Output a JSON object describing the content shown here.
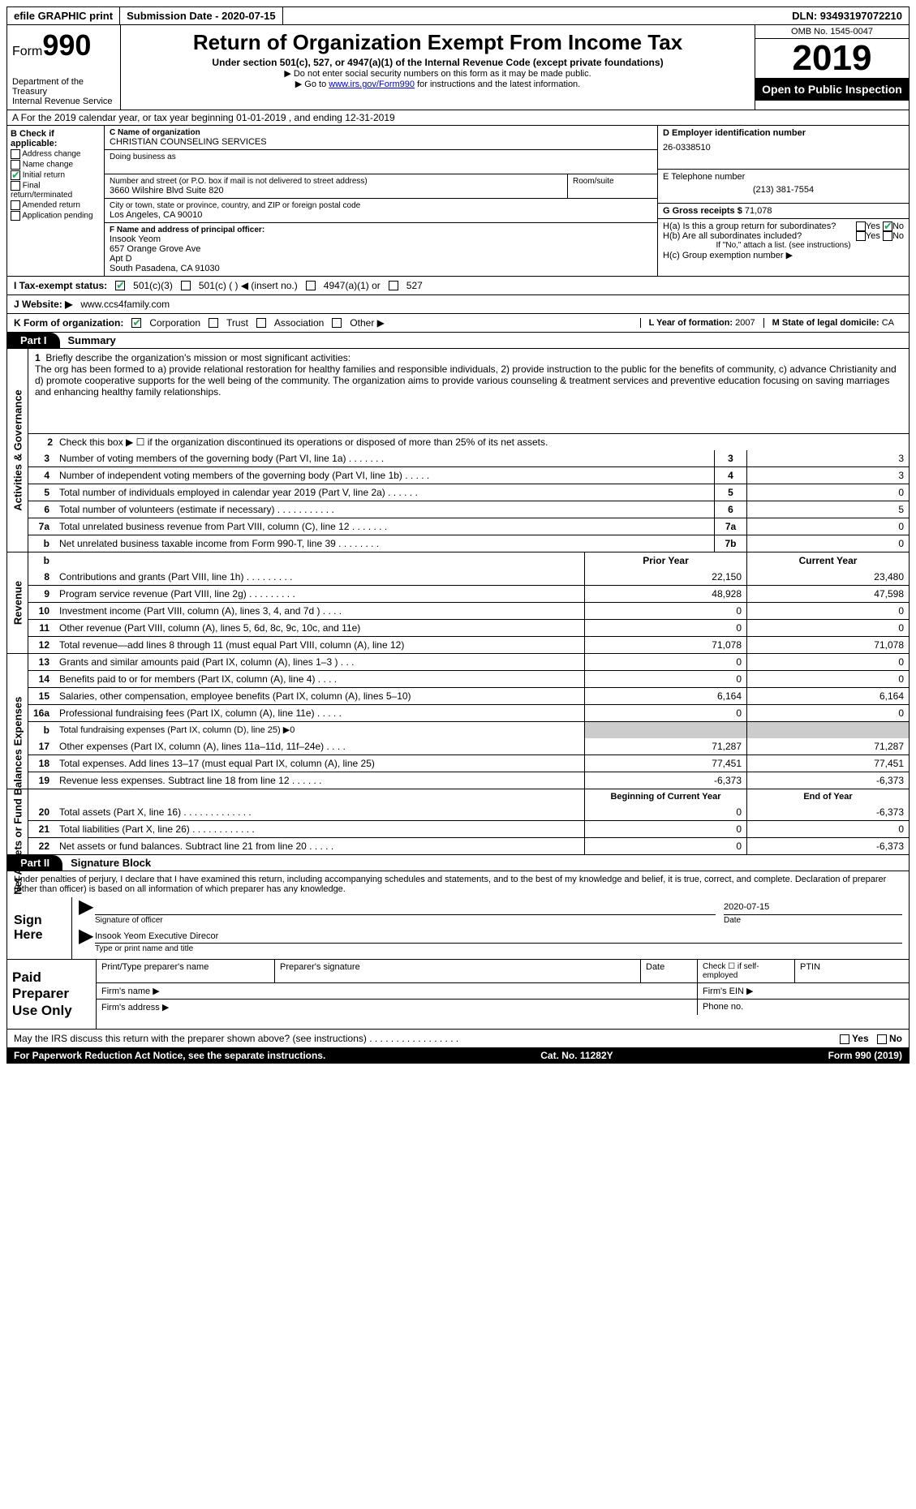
{
  "topbar": {
    "efile": "efile GRAPHIC print",
    "submission_label": "Submission Date - 2020-07-15",
    "dln_label": "DLN: 93493197072210"
  },
  "header": {
    "form_word": "Form",
    "form_num": "990",
    "dept": "Department of the Treasury\nInternal Revenue Service",
    "title": "Return of Organization Exempt From Income Tax",
    "subtitle": "Under section 501(c), 527, or 4947(a)(1) of the Internal Revenue Code (except private foundations)",
    "note1": "▶ Do not enter social security numbers on this form as it may be made public.",
    "note2_pre": "▶ Go to ",
    "note2_link": "www.irs.gov/Form990",
    "note2_post": " for instructions and the latest information.",
    "omb": "OMB No. 1545-0047",
    "year": "2019",
    "open": "Open to Public Inspection"
  },
  "row_a": "A   For the 2019 calendar year, or tax year beginning 01-01-2019     , and ending 12-31-2019",
  "box_b": {
    "title": "B Check if applicable:",
    "items": [
      "Address change",
      "Name change",
      "Initial return",
      "Final return/terminated",
      "Amended return",
      "Application pending"
    ],
    "checked_index": 2
  },
  "box_c": {
    "label_name": "C Name of organization",
    "name": "CHRISTIAN COUNSELING SERVICES",
    "dba_label": "Doing business as",
    "street_label": "Number and street (or P.O. box if mail is not delivered to street address)",
    "street": "3660 Wilshire Blvd Suite 820",
    "room_label": "Room/suite",
    "city_label": "City or town, state or province, country, and ZIP or foreign postal code",
    "city": "Los Angeles, CA   90010"
  },
  "box_d": {
    "label": "D Employer identification number",
    "value": "26-0338510"
  },
  "box_e": {
    "label": "E Telephone number",
    "value": "(213) 381-7554"
  },
  "box_g": {
    "label": "G Gross receipts $",
    "value": "71,078"
  },
  "box_f": {
    "label": "F  Name and address of principal officer:",
    "name": "Insook Yeom",
    "addr1": "657 Orange Grove Ave",
    "addr2": "Apt D",
    "addr3": "South Pasadena, CA   91030"
  },
  "box_h": {
    "ha": "H(a)  Is this a group return for subordinates?",
    "hb": "H(b)  Are all subordinates included?",
    "hb_note": "If \"No,\" attach a list. (see instructions)",
    "hc": "H(c)  Group exemption number ▶",
    "yes": "Yes",
    "no": "No"
  },
  "tax_status": {
    "label": "I    Tax-exempt status:",
    "opt1": "501(c)(3)",
    "opt2": "501(c) (  ) ◀ (insert no.)",
    "opt3": "4947(a)(1) or",
    "opt4": "527"
  },
  "website": {
    "label": "J   Website: ▶",
    "value": "www.ccs4family.com"
  },
  "line_k": {
    "label": "K Form of organization:",
    "opts": [
      "Corporation",
      "Trust",
      "Association",
      "Other ▶"
    ],
    "l_label": "L Year of formation: ",
    "l_val": "2007",
    "m_label": "M State of legal domicile: ",
    "m_val": "CA"
  },
  "part1": {
    "tab": "Part I",
    "title": "Summary",
    "sectA_label": "Activities & Governance",
    "line1_label": "Briefly describe the organization's mission or most significant activities:",
    "line1_text": "The org has been formed to a) provide relational restoration for healthy families and responsible individuals, 2) provide instruction to the public for the benefits of community, c) advance Christianity and d) promote cooperative supports for the well being of the community. The organization aims to provide various counseling & treatment services and preventive education focusing on saving marriages and enhancing healthy family relationships.",
    "line2": "Check this box ▶ ☐ if the organization discontinued its operations or disposed of more than 25% of its net assets.",
    "rows_gov": [
      {
        "n": "3",
        "t": "Number of voting members of the governing body (Part VI, line 1a)   .    .    .    .    .    .    .",
        "box": "3",
        "v": "3"
      },
      {
        "n": "4",
        "t": "Number of independent voting members of the governing body (Part VI, line 1b)    .    .    .    .    .",
        "box": "4",
        "v": "3"
      },
      {
        "n": "5",
        "t": "Total number of individuals employed in calendar year 2019 (Part V, line 2a)    .    .    .    .    .    .",
        "box": "5",
        "v": "0"
      },
      {
        "n": "6",
        "t": "Total number of volunteers (estimate if necessary)    .    .    .    .    .    .    .    .    .    .    .",
        "box": "6",
        "v": "5"
      },
      {
        "n": "7a",
        "t": "Total unrelated business revenue from Part VIII, column (C), line 12    .    .    .    .    .    .    .",
        "box": "7a",
        "v": "0"
      },
      {
        "n": "b",
        "t": "Net unrelated business taxable income from Form 990-T, line 39    .    .    .    .    .    .    .    .",
        "box": "7b",
        "v": "0"
      }
    ],
    "sectB_label": "Revenue",
    "header_prior": "Prior Year",
    "header_current": "Current Year",
    "rows_rev": [
      {
        "n": "8",
        "t": "Contributions and grants (Part VIII, line 1h)    .    .    .    .    .    .    .    .    .",
        "p": "22,150",
        "c": "23,480"
      },
      {
        "n": "9",
        "t": "Program service revenue (Part VIII, line 2g)    .    .    .    .    .    .    .    .    .",
        "p": "48,928",
        "c": "47,598"
      },
      {
        "n": "10",
        "t": "Investment income (Part VIII, column (A), lines 3, 4, and 7d )   .    .    .    .",
        "p": "0",
        "c": "0"
      },
      {
        "n": "11",
        "t": "Other revenue (Part VIII, column (A), lines 5, 6d, 8c, 9c, 10c, and 11e)",
        "p": "0",
        "c": "0"
      },
      {
        "n": "12",
        "t": "Total revenue—add lines 8 through 11 (must equal Part VIII, column (A), line 12)",
        "p": "71,078",
        "c": "71,078"
      }
    ],
    "sectC_label": "Expenses",
    "rows_exp": [
      {
        "n": "13",
        "t": "Grants and similar amounts paid (Part IX, column (A), lines 1–3 )   .    .    .",
        "p": "0",
        "c": "0"
      },
      {
        "n": "14",
        "t": "Benefits paid to or for members (Part IX, column (A), line 4)    .    .    .    .",
        "p": "0",
        "c": "0"
      },
      {
        "n": "15",
        "t": "Salaries, other compensation, employee benefits (Part IX, column (A), lines 5–10)",
        "p": "6,164",
        "c": "6,164"
      },
      {
        "n": "16a",
        "t": "Professional fundraising fees (Part IX, column (A), line 11e)    .    .    .    .    .",
        "p": "0",
        "c": "0"
      }
    ],
    "line16b_n": "b",
    "line16b_t": "Total fundraising expenses (Part IX, column (D), line 25) ▶0",
    "rows_exp2": [
      {
        "n": "17",
        "t": "Other expenses (Part IX, column (A), lines 11a–11d, 11f–24e)    .    .    .    .",
        "p": "71,287",
        "c": "71,287"
      },
      {
        "n": "18",
        "t": "Total expenses. Add lines 13–17 (must equal Part IX, column (A), line 25)",
        "p": "77,451",
        "c": "77,451"
      },
      {
        "n": "19",
        "t": "Revenue less expenses. Subtract line 18 from line 12    .    .    .    .    .    .",
        "p": "-6,373",
        "c": "-6,373"
      }
    ],
    "sectD_label": "Net Assets or Fund Balances",
    "header_begin": "Beginning of Current Year",
    "header_end": "End of Year",
    "rows_net": [
      {
        "n": "20",
        "t": "Total assets (Part X, line 16)    .    .    .    .    .    .    .    .    .    .    .    .    .",
        "p": "0",
        "c": "-6,373"
      },
      {
        "n": "21",
        "t": "Total liabilities (Part X, line 26)    .    .    .    .    .    .    .    .    .    .    .    .",
        "p": "0",
        "c": "0"
      },
      {
        "n": "22",
        "t": "Net assets or fund balances. Subtract line 21 from line 20    .    .    .    .    .",
        "p": "0",
        "c": "-6,373"
      }
    ]
  },
  "part2": {
    "tab": "Part II",
    "title": "Signature Block",
    "perjury": "Under penalties of perjury, I declare that I have examined this return, including accompanying schedules and statements, and to the best of my knowledge and belief, it is true, correct, and complete. Declaration of preparer (other than officer) is based on all information of which preparer has any knowledge.",
    "sign_here": "Sign Here",
    "sig_officer_label": "Signature of officer",
    "date_label": "Date",
    "sig_date": "2020-07-15",
    "typed_name": "Insook Yeom Executive Direcor",
    "typed_label": "Type or print name and title",
    "paid_label": "Paid Preparer Use Only",
    "prep_name": "Print/Type preparer's name",
    "prep_sig": "Preparer's signature",
    "prep_date": "Date",
    "prep_check": "Check ☐ if self-employed",
    "ptin": "PTIN",
    "firm_name": "Firm's name    ▶",
    "firm_ein": "Firm's EIN ▶",
    "firm_addr": "Firm's address ▶",
    "phone": "Phone no.",
    "discuss": "May the IRS discuss this return with the preparer shown above? (see instructions)   .    .    .    .    .    .    .    .    .    .    .    .    .    .    .    .    .",
    "yes": "Yes",
    "no": "No"
  },
  "footer": {
    "left": "For Paperwork Reduction Act Notice, see the separate instructions.",
    "mid": "Cat. No. 11282Y",
    "right": "Form 990 (2019)"
  }
}
